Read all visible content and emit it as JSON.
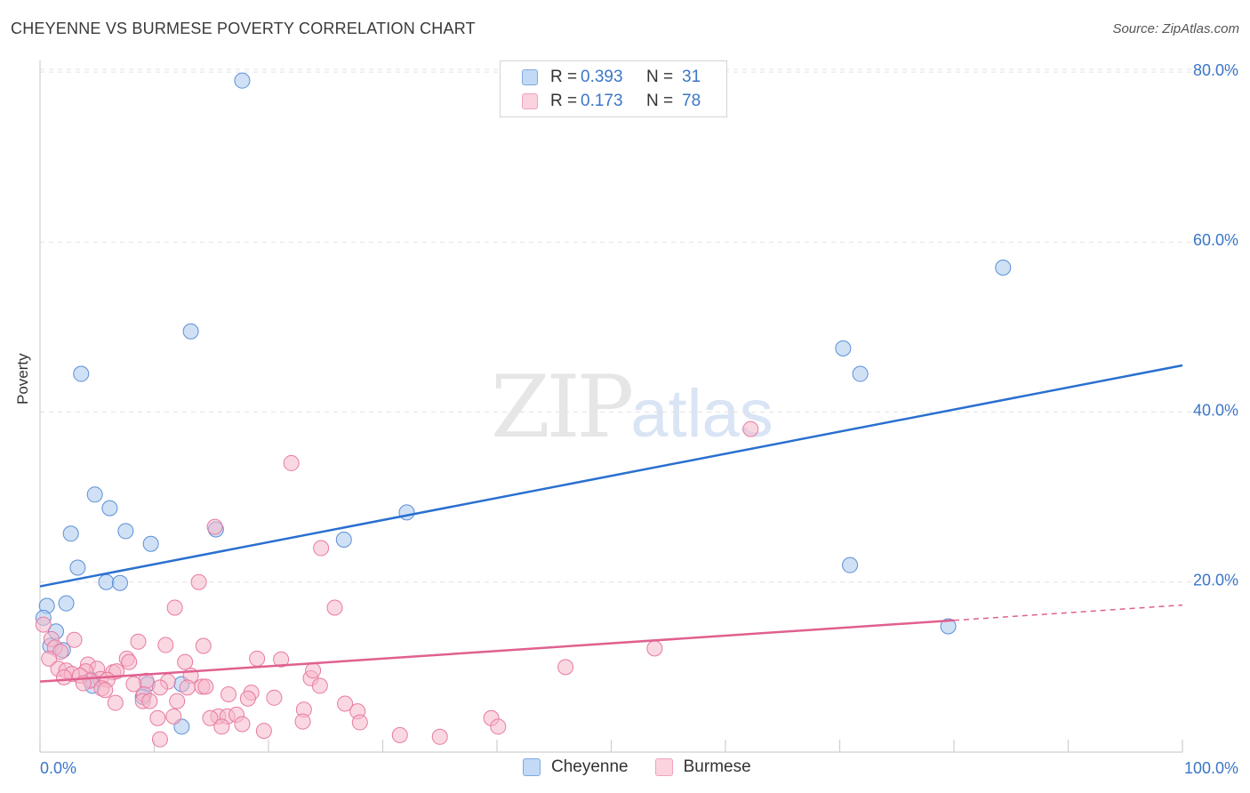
{
  "header": {
    "title": "CHEYENNE VS BURMESE POVERTY CORRELATION CHART",
    "source": "Source: ZipAtlas.com"
  },
  "watermark": {
    "zip": "ZIP",
    "atlas": "atlas"
  },
  "legend": {
    "rows": [
      {
        "r_label": "R =",
        "r_value": "0.393",
        "n_label": "N =",
        "n_value": "31",
        "color": "#a9c8ef"
      },
      {
        "r_label": "R =",
        "r_value": "0.173",
        "n_label": "N =",
        "n_value": "78",
        "color": "#f5b8cb"
      }
    ]
  },
  "bottom_legend": [
    {
      "label": "Cheyenne",
      "color": "#a9c8ef"
    },
    {
      "label": "Burmese",
      "color": "#f5b8cb"
    }
  ],
  "chart_data": {
    "type": "scatter",
    "title": "CHEYENNE VS BURMESE POVERTY CORRELATION CHART",
    "xlabel": "",
    "ylabel": "Poverty",
    "xlim": [
      0,
      100
    ],
    "ylim": [
      0,
      82
    ],
    "x_tick_labels": [
      "0.0%",
      "100.0%"
    ],
    "y_ticks": [
      20,
      40,
      60,
      80
    ],
    "y_tick_labels": [
      "20.0%",
      "40.0%",
      "60.0%",
      "80.0%"
    ],
    "grid": true,
    "series": [
      {
        "name": "Cheyenne",
        "color": "#a9c8ef",
        "stroke": "#5b8fd6",
        "line_color": "#2a6fd0",
        "trend": {
          "x": [
            0,
            100
          ],
          "y": [
            19.5,
            45.5
          ],
          "dashed_from": null
        },
        "points": [
          {
            "x": 17.7,
            "y": 79
          },
          {
            "x": 84.3,
            "y": 57
          },
          {
            "x": 13.2,
            "y": 49.5
          },
          {
            "x": 70.3,
            "y": 47.5
          },
          {
            "x": 3.6,
            "y": 44.5
          },
          {
            "x": 71.8,
            "y": 44.5
          },
          {
            "x": 4.8,
            "y": 30.3
          },
          {
            "x": 6.1,
            "y": 28.7
          },
          {
            "x": 32.1,
            "y": 28.2
          },
          {
            "x": 15.4,
            "y": 26.2
          },
          {
            "x": 2.7,
            "y": 25.7
          },
          {
            "x": 7.5,
            "y": 26
          },
          {
            "x": 9.7,
            "y": 24.5
          },
          {
            "x": 26.6,
            "y": 25
          },
          {
            "x": 3.3,
            "y": 21.7
          },
          {
            "x": 70.9,
            "y": 22
          },
          {
            "x": 5.8,
            "y": 20
          },
          {
            "x": 7.0,
            "y": 19.9
          },
          {
            "x": 0.6,
            "y": 17.2
          },
          {
            "x": 2.3,
            "y": 17.5
          },
          {
            "x": 0.3,
            "y": 15.8
          },
          {
            "x": 79.5,
            "y": 14.8
          },
          {
            "x": 1.4,
            "y": 14.2
          },
          {
            "x": 0.9,
            "y": 12.5
          },
          {
            "x": 2.0,
            "y": 12
          },
          {
            "x": 4.5,
            "y": 8.5
          },
          {
            "x": 9.4,
            "y": 8
          },
          {
            "x": 12.4,
            "y": 8
          },
          {
            "x": 4.6,
            "y": 7.8
          },
          {
            "x": 9.0,
            "y": 6.5
          },
          {
            "x": 12.4,
            "y": 3
          }
        ]
      },
      {
        "name": "Burmese",
        "color": "#f5b8cb",
        "stroke": "#e87aa0",
        "line_color": "#e0608f",
        "trend": {
          "x": [
            0,
            100
          ],
          "y": [
            8.3,
            17.3
          ],
          "dashed_from": 80
        },
        "points": [
          {
            "x": 62.2,
            "y": 38
          },
          {
            "x": 22.0,
            "y": 34
          },
          {
            "x": 15.3,
            "y": 26.5
          },
          {
            "x": 24.6,
            "y": 24
          },
          {
            "x": 13.9,
            "y": 20
          },
          {
            "x": 11.8,
            "y": 17
          },
          {
            "x": 25.8,
            "y": 17
          },
          {
            "x": 0.3,
            "y": 15
          },
          {
            "x": 1.0,
            "y": 13.3
          },
          {
            "x": 3.0,
            "y": 13.2
          },
          {
            "x": 8.6,
            "y": 13
          },
          {
            "x": 11.0,
            "y": 12.6
          },
          {
            "x": 14.3,
            "y": 12.5
          },
          {
            "x": 1.3,
            "y": 12.3
          },
          {
            "x": 1.8,
            "y": 11.8
          },
          {
            "x": 0.8,
            "y": 11
          },
          {
            "x": 7.6,
            "y": 11
          },
          {
            "x": 7.8,
            "y": 10.6
          },
          {
            "x": 19.0,
            "y": 11
          },
          {
            "x": 21.1,
            "y": 10.9
          },
          {
            "x": 12.7,
            "y": 10.6
          },
          {
            "x": 46.0,
            "y": 10
          },
          {
            "x": 53.8,
            "y": 12.2
          },
          {
            "x": 1.6,
            "y": 9.8
          },
          {
            "x": 2.3,
            "y": 9.6
          },
          {
            "x": 4.2,
            "y": 10.3
          },
          {
            "x": 5.0,
            "y": 9.8
          },
          {
            "x": 4.0,
            "y": 9.5
          },
          {
            "x": 6.4,
            "y": 9.4
          },
          {
            "x": 6.7,
            "y": 9.5
          },
          {
            "x": 2.8,
            "y": 9.2
          },
          {
            "x": 3.5,
            "y": 9
          },
          {
            "x": 2.1,
            "y": 8.8
          },
          {
            "x": 5.3,
            "y": 8.6
          },
          {
            "x": 5.9,
            "y": 8.5
          },
          {
            "x": 9.3,
            "y": 8.4
          },
          {
            "x": 11.2,
            "y": 8.3
          },
          {
            "x": 13.2,
            "y": 9
          },
          {
            "x": 23.7,
            "y": 8.7
          },
          {
            "x": 23.9,
            "y": 9.6
          },
          {
            "x": 4.4,
            "y": 8.4
          },
          {
            "x": 3.8,
            "y": 8.1
          },
          {
            "x": 8.2,
            "y": 8
          },
          {
            "x": 10.5,
            "y": 7.6
          },
          {
            "x": 12.9,
            "y": 7.6
          },
          {
            "x": 14.2,
            "y": 7.7
          },
          {
            "x": 14.5,
            "y": 7.7
          },
          {
            "x": 24.5,
            "y": 7.8
          },
          {
            "x": 5.4,
            "y": 7.5
          },
          {
            "x": 5.7,
            "y": 7.3
          },
          {
            "x": 9.1,
            "y": 6.8
          },
          {
            "x": 18.5,
            "y": 7
          },
          {
            "x": 18.2,
            "y": 6.3
          },
          {
            "x": 20.5,
            "y": 6.4
          },
          {
            "x": 16.5,
            "y": 6.8
          },
          {
            "x": 9.0,
            "y": 6
          },
          {
            "x": 9.6,
            "y": 6
          },
          {
            "x": 12.0,
            "y": 6
          },
          {
            "x": 6.6,
            "y": 5.8
          },
          {
            "x": 23.1,
            "y": 5
          },
          {
            "x": 26.7,
            "y": 5.7
          },
          {
            "x": 27.8,
            "y": 4.8
          },
          {
            "x": 11.7,
            "y": 4.2
          },
          {
            "x": 10.3,
            "y": 4
          },
          {
            "x": 15.6,
            "y": 4.2
          },
          {
            "x": 16.4,
            "y": 4.2
          },
          {
            "x": 14.9,
            "y": 4
          },
          {
            "x": 17.2,
            "y": 4.4
          },
          {
            "x": 15.9,
            "y": 3
          },
          {
            "x": 17.7,
            "y": 3.3
          },
          {
            "x": 23.0,
            "y": 3.6
          },
          {
            "x": 28.0,
            "y": 3.5
          },
          {
            "x": 39.5,
            "y": 4
          },
          {
            "x": 40.1,
            "y": 3
          },
          {
            "x": 19.6,
            "y": 2.5
          },
          {
            "x": 31.5,
            "y": 2
          },
          {
            "x": 10.5,
            "y": 1.5
          },
          {
            "x": 35.0,
            "y": 1.8
          }
        ]
      }
    ]
  }
}
